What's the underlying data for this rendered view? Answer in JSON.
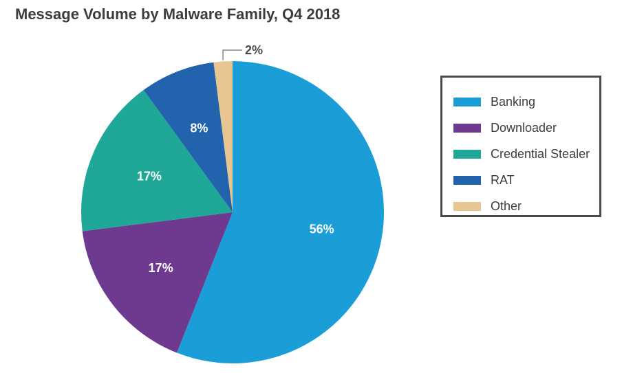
{
  "chart_data": {
    "type": "pie",
    "title": "Message Volume by Malware Family, Q4 2018",
    "slices": [
      {
        "label": "Banking",
        "value": 56,
        "display": "56%",
        "color": "#1b9dd7"
      },
      {
        "label": "Downloader",
        "value": 17,
        "display": "17%",
        "color": "#6e3a8f"
      },
      {
        "label": "Credential Stealer",
        "value": 17,
        "display": "17%",
        "color": "#1fa898"
      },
      {
        "label": "RAT",
        "value": 8,
        "display": "8%",
        "color": "#2163ad"
      },
      {
        "label": "Other",
        "value": 2,
        "display": "2%",
        "color": "#e9c591"
      }
    ],
    "legend_position": "right"
  }
}
